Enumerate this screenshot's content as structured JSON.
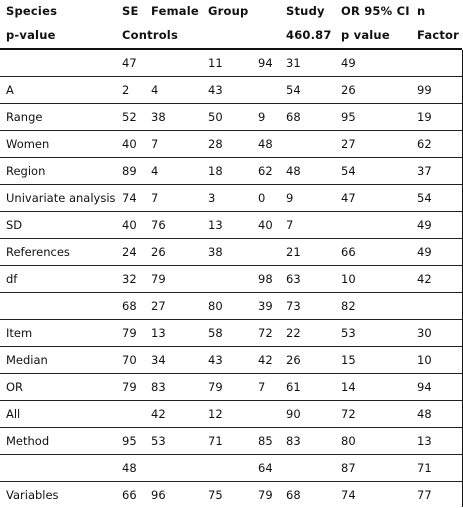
{
  "table": {
    "header_row1": [
      "Species",
      "SE",
      "Female",
      "Group",
      "",
      "Study",
      "OR 95% CI",
      "n"
    ],
    "header_row2": [
      "p-value",
      "Controls",
      "460.87",
      "p value",
      "Factor"
    ],
    "rows": [
      [
        "",
        "47",
        "",
        "11",
        "94",
        "31",
        "49",
        ""
      ],
      [
        "A",
        "2",
        "4",
        "43",
        "",
        "54",
        "26",
        "99"
      ],
      [
        "Range",
        "52",
        "38",
        "50",
        "9",
        "68",
        "95",
        "19"
      ],
      [
        "Women",
        "40",
        "7",
        "28",
        "48",
        "",
        "27",
        "62"
      ],
      [
        "Region",
        "89",
        "4",
        "18",
        "62",
        "48",
        "54",
        "37"
      ],
      [
        "Univariate analysis",
        "74",
        "7",
        "3",
        "0",
        "9",
        "47",
        "54"
      ],
      [
        "SD",
        "40",
        "76",
        "13",
        "40",
        "7",
        "",
        "49"
      ],
      [
        "References",
        "24",
        "26",
        "38",
        "",
        "21",
        "66",
        "49"
      ],
      [
        "df",
        "32",
        "79",
        "",
        "98",
        "63",
        "10",
        "42"
      ],
      [
        "",
        "68",
        "27",
        "80",
        "39",
        "73",
        "82",
        ""
      ],
      [
        "Item",
        "79",
        "13",
        "58",
        "72",
        "22",
        "53",
        "30"
      ],
      [
        "Median",
        "70",
        "34",
        "43",
        "42",
        "26",
        "15",
        "10"
      ],
      [
        "OR",
        "79",
        "83",
        "79",
        "7",
        "61",
        "14",
        "94"
      ],
      [
        "All",
        "",
        "42",
        "12",
        "",
        "90",
        "72",
        "48"
      ],
      [
        "Method",
        "95",
        "53",
        "71",
        "85",
        "83",
        "80",
        "13"
      ],
      [
        "",
        "48",
        "",
        "",
        "64",
        "",
        "87",
        "71"
      ],
      [
        "Variables",
        "66",
        "96",
        "75",
        "79",
        "68",
        "74",
        "77"
      ]
    ]
  }
}
